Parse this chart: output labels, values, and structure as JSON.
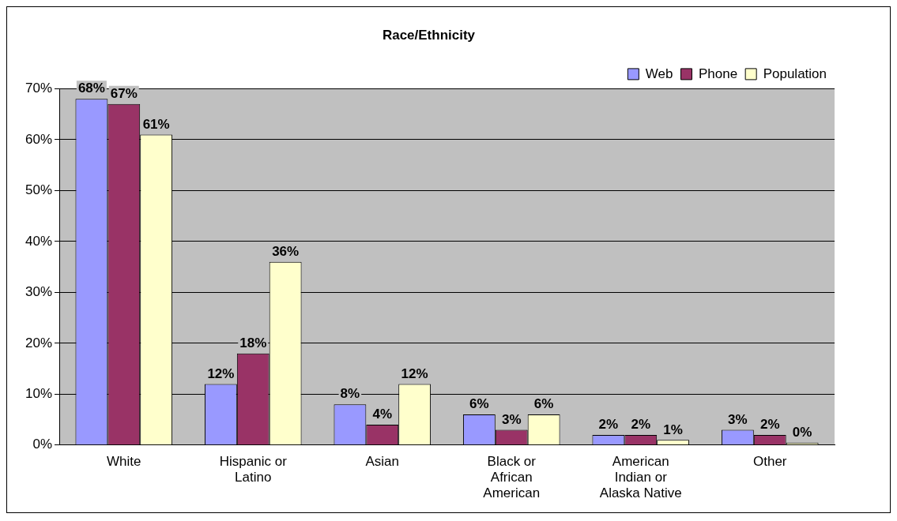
{
  "chart_data": {
    "type": "bar",
    "title": "Race/Ethnicity",
    "categories": [
      "White",
      "Hispanic or Latino",
      "Asian",
      "Black or African American",
      "American Indian or Alaska Native",
      "Other"
    ],
    "series": [
      {
        "name": "Web",
        "color": "#9999ff",
        "values": [
          68,
          12,
          8,
          6,
          2,
          3
        ],
        "value_labels": [
          "68%",
          "12%",
          "8%",
          "6%",
          "2%",
          "3%"
        ]
      },
      {
        "name": "Phone",
        "color": "#993366",
        "values": [
          67,
          18,
          4,
          3,
          2,
          2
        ],
        "value_labels": [
          "67%",
          "18%",
          "4%",
          "3%",
          "2%",
          "2%"
        ]
      },
      {
        "name": "Population",
        "color": "#ffffcc",
        "values": [
          61,
          36,
          12,
          6,
          1,
          0
        ],
        "value_labels": [
          "61%",
          "36%",
          "12%",
          "6%",
          "1%",
          "0%"
        ]
      }
    ],
    "ylim": [
      0,
      70
    ],
    "yticks": [
      {
        "value": 0,
        "label": "0%"
      },
      {
        "value": 10,
        "label": "10%"
      },
      {
        "value": 20,
        "label": "20%"
      },
      {
        "value": 30,
        "label": "30%"
      },
      {
        "value": 40,
        "label": "40%"
      },
      {
        "value": 50,
        "label": "50%"
      },
      {
        "value": 60,
        "label": "60%"
      },
      {
        "value": 70,
        "label": "70%"
      }
    ],
    "grid": "y",
    "legend": "top right"
  }
}
